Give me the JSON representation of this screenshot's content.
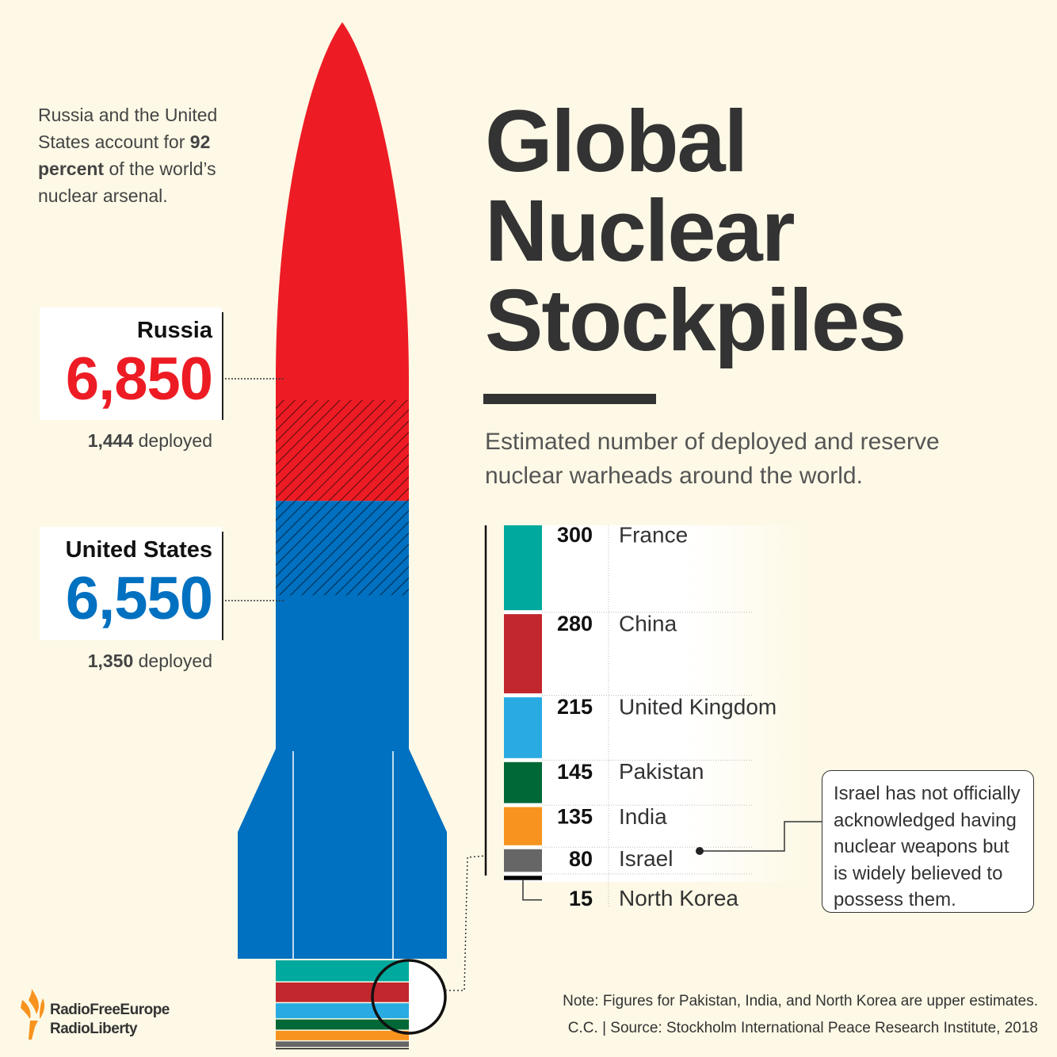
{
  "chart_data": {
    "type": "stockpile",
    "title": "Global Nuclear Stockpiles",
    "subtitle": "Estimated number of deployed and reserve nuclear warheads around the world.",
    "intro": [
      "Russia and the United States account for ",
      "92 percent",
      " of the world’s nuclear arsenal."
    ],
    "major": [
      {
        "name": "Russia",
        "value": 6850,
        "value_label": "6,850",
        "deployed": 1444,
        "deployed_label": "1,444",
        "color": "#ed1c24"
      },
      {
        "name": "United States",
        "value": 6550,
        "value_label": "6,550",
        "deployed": 1350,
        "deployed_label": "1,350",
        "color": "#0070c0"
      }
    ],
    "deployed_word": "deployed",
    "others": {
      "categories": [
        "France",
        "China",
        "United Kingdom",
        "Pakistan",
        "India",
        "Israel",
        "North Korea"
      ],
      "values": [
        300,
        280,
        215,
        145,
        135,
        80,
        15
      ],
      "colors": [
        "#00a99d",
        "#c1272d",
        "#29abe2",
        "#006837",
        "#f7931e",
        "#666666",
        "#000000"
      ]
    },
    "annotation": "Israel has not officially acknowledged having nuclear weapons but is widely believed to possess them.",
    "note": "Note: Figures for Pakistan, India, and North Korea are upper estimates.",
    "source": "C.C. | Source: Stockholm International Peace Research Institute, 2018",
    "logo": [
      "RadioFreeEurope",
      "RadioLiberty"
    ]
  }
}
